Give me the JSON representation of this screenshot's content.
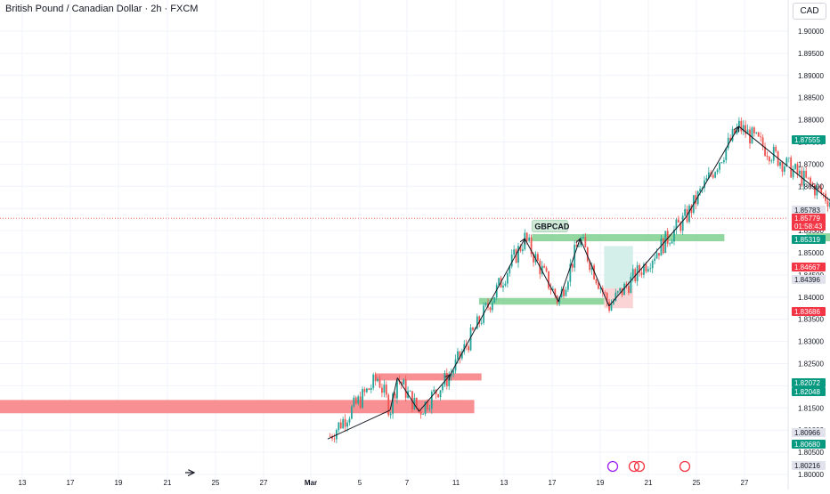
{
  "header": {
    "title": "British Pound / Canadian Dollar · 2h · FXCM",
    "currency": "CAD"
  },
  "colors": {
    "up": "#26a69a",
    "down": "#ef5350",
    "zone_red": "#f77c80",
    "zone_green": "#7fcf8f",
    "tp_fill": "#d4eee9",
    "sl_fill": "#fbd5d6",
    "line": "#131722",
    "grid": "#f0f3fa"
  },
  "chart_data": {
    "type": "candlestick",
    "symbol": "GBPCAD",
    "timeframe": "2h",
    "y_ticks": [
      "1.90000",
      "1.89500",
      "1.89000",
      "1.88500",
      "1.88000",
      "1.87500",
      "1.87000",
      "1.86500",
      "1.86000",
      "1.85500",
      "1.85000",
      "1.84500",
      "1.84000",
      "1.83500",
      "1.83000",
      "1.82500",
      "1.82000",
      "1.81500",
      "1.81000",
      "1.80500",
      "1.80000"
    ],
    "x_ticks": [
      "13",
      "17",
      "19",
      "21",
      "25",
      "27",
      "Mar",
      "5",
      "7",
      "11",
      "13",
      "17",
      "19",
      "21",
      "25",
      "27"
    ],
    "ylim": [
      1.798,
      1.906
    ],
    "path_points": [
      {
        "d": 12.6,
        "p": 1.799
      },
      {
        "d": 12.7,
        "p": 1.808
      },
      {
        "d": 14.8,
        "p": 1.8218
      },
      {
        "d": 15.3,
        "p": 1.8145
      },
      {
        "d": 15.6,
        "p": 1.8218
      },
      {
        "d": 16.5,
        "p": 1.8142
      },
      {
        "d": 17.8,
        "p": 1.8225
      },
      {
        "d": 20.9,
        "p": 1.8532
      },
      {
        "d": 22.3,
        "p": 1.839
      },
      {
        "d": 23.2,
        "p": 1.8532
      },
      {
        "d": 24.4,
        "p": 1.838
      },
      {
        "d": 27.6,
        "p": 1.858
      },
      {
        "d": 29.8,
        "p": 1.8785
      },
      {
        "d": 34.0,
        "p": 1.86
      },
      {
        "d": 35.7,
        "p": 1.8495
      }
    ],
    "zones": [
      {
        "color": "red",
        "d0": -1.0,
        "d1": 18.8,
        "p0": 1.8138,
        "p1": 1.8168
      },
      {
        "color": "red",
        "d0": 14.7,
        "d1": 19.1,
        "p0": 1.8212,
        "p1": 1.8228
      },
      {
        "color": "green",
        "d0": 19.0,
        "d1": 24.6,
        "p0": 1.8383,
        "p1": 1.8398
      },
      {
        "color": "green",
        "d0": 21.2,
        "d1": 29.2,
        "p0": 1.8526,
        "p1": 1.8542
      },
      {
        "color": "green",
        "d0": 32.6,
        "d1": 40.6,
        "p0": 1.8526,
        "p1": 1.8544
      }
    ],
    "position": {
      "type": "long",
      "entry": 1.85783,
      "target": 1.87555,
      "stop": 1.84667,
      "d0": 36.8,
      "d1": 41.4
    },
    "mini_position": {
      "d0": 24.2,
      "d1": 25.4,
      "entry": 1.842,
      "target": 1.8515,
      "stop": 1.8375
    },
    "pattern_label": "GBPCAD",
    "price_labels": [
      {
        "value": "1.87555",
        "style": "green"
      },
      {
        "value": "1.85783",
        "style": "grey"
      },
      {
        "value": "1.85779",
        "style": "red"
      },
      {
        "value": "01:58:43",
        "style": "red-sub"
      },
      {
        "value": "1.85319",
        "style": "green"
      },
      {
        "value": "1.84667",
        "style": "red"
      },
      {
        "value": "1.84396",
        "style": "grey"
      },
      {
        "value": "1.83686",
        "style": "red"
      },
      {
        "value": "1.82072",
        "style": "green"
      },
      {
        "value": "1.82048",
        "style": "green"
      },
      {
        "value": "1.80966",
        "style": "grey"
      },
      {
        "value": "1.80680",
        "style": "green"
      },
      {
        "value": "1.80216",
        "style": "grey"
      }
    ],
    "last_price": 1.85779
  }
}
